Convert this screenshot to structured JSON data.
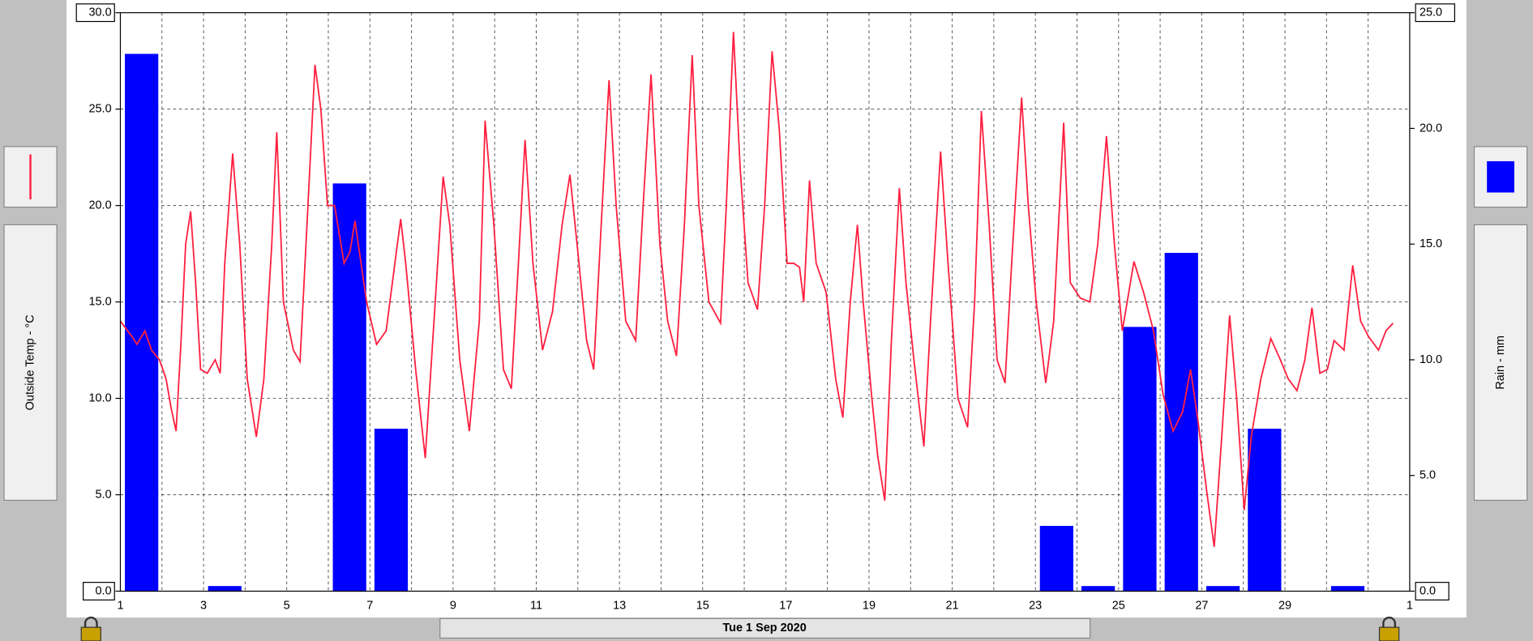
{
  "chart_data": {
    "type": "combo",
    "date": "Tue 1 Sep 2020",
    "grid": true,
    "xlim": [
      1,
      32
    ],
    "xticks": [
      1,
      {
        "value": 2,
        "label": null
      },
      3,
      {
        "value": 4,
        "label": null
      },
      5,
      {
        "value": 6,
        "label": null
      },
      7,
      {
        "value": 8,
        "label": null
      },
      9,
      {
        "value": 10,
        "label": null
      },
      11,
      {
        "value": 12,
        "label": null
      },
      13,
      {
        "value": 14,
        "label": null
      },
      15,
      {
        "value": 16,
        "label": null
      },
      17,
      {
        "value": 18,
        "label": null
      },
      19,
      {
        "value": 20,
        "label": null
      },
      21,
      {
        "value": 22,
        "label": null
      },
      23,
      {
        "value": 24,
        "label": null
      },
      25,
      {
        "value": 26,
        "label": null
      },
      27,
      {
        "value": 28,
        "label": null
      },
      29,
      {
        "value": 30,
        "label": null
      },
      {
        "value": 31,
        "label": null
      },
      {
        "value": 32,
        "label": "1"
      }
    ],
    "ylim": [
      0,
      30
    ],
    "yticks": [
      {
        "value": 0,
        "label": "0.0"
      },
      {
        "value": 5,
        "label": "5.0"
      },
      {
        "value": 10,
        "label": "10.0"
      },
      {
        "value": 15,
        "label": "15.0"
      },
      {
        "value": 20,
        "label": "20.0"
      },
      {
        "value": 25,
        "label": "25.0"
      },
      {
        "value": 30,
        "label": "30.0"
      }
    ],
    "y2lim": [
      0,
      25
    ],
    "y2ticks": [
      {
        "value": 0,
        "label": "0.0"
      },
      {
        "value": 5,
        "label": "5.0"
      },
      {
        "value": 10,
        "label": "10.0"
      },
      {
        "value": 15,
        "label": "15.0"
      },
      {
        "value": 20,
        "label": "20.0"
      },
      {
        "value": 25,
        "label": "25.0"
      }
    ],
    "series": [
      {
        "name": "Outside Temp - °C",
        "type": "line",
        "color": "#ff2040",
        "x": [
          1.0,
          1.28,
          1.4,
          1.59,
          1.75,
          1.94,
          2.1,
          2.22,
          2.34,
          2.46,
          2.57,
          2.69,
          2.81,
          2.93,
          3.09,
          3.28,
          3.4,
          3.51,
          3.7,
          3.87,
          4.05,
          4.27,
          4.45,
          4.64,
          4.76,
          4.92,
          5.16,
          5.32,
          5.51,
          5.68,
          5.82,
          5.98,
          6.15,
          6.38,
          6.52,
          6.64,
          6.92,
          7.16,
          7.39,
          7.63,
          7.74,
          7.86,
          8.1,
          8.33,
          8.57,
          8.76,
          8.92,
          9.16,
          9.39,
          9.63,
          9.77,
          9.98,
          10.21,
          10.4,
          10.57,
          10.73,
          10.92,
          11.15,
          11.39,
          11.62,
          11.81,
          11.98,
          12.21,
          12.38,
          12.56,
          12.75,
          12.92,
          13.15,
          13.39,
          13.57,
          13.76,
          13.97,
          14.16,
          14.37,
          14.56,
          14.75,
          14.91,
          15.15,
          15.43,
          15.57,
          15.74,
          15.9,
          16.09,
          16.32,
          16.49,
          16.67,
          16.84,
          17.03,
          17.19,
          17.33,
          17.43,
          17.57,
          17.73,
          17.97,
          18.2,
          18.37,
          18.55,
          18.72,
          18.86,
          19.07,
          19.21,
          19.38,
          19.54,
          19.73,
          19.89,
          20.08,
          20.32,
          20.48,
          20.72,
          20.9,
          21.14,
          21.37,
          21.54,
          21.7,
          21.89,
          22.08,
          22.27,
          22.43,
          22.67,
          22.83,
          23.02,
          23.25,
          23.44,
          23.68,
          23.84,
          24.08,
          24.31,
          24.5,
          24.71,
          24.9,
          25.09,
          25.37,
          25.6,
          25.84,
          26.07,
          26.31,
          26.54,
          26.73,
          26.9,
          27.13,
          27.3,
          27.48,
          27.67,
          27.84,
          28.02,
          28.19,
          28.42,
          28.66,
          28.89,
          29.08,
          29.29,
          29.48,
          29.65,
          29.84,
          30.02,
          30.18,
          30.42,
          30.63,
          30.82,
          31.01,
          31.25,
          31.43,
          31.6
        ],
        "values": [
          14.0,
          13.2,
          12.8,
          13.5,
          12.5,
          12.0,
          11.0,
          9.5,
          8.3,
          13.0,
          18.0,
          19.7,
          16.0,
          11.5,
          11.3,
          12.0,
          11.3,
          17.0,
          22.7,
          18.0,
          11.0,
          8.0,
          11.0,
          18.0,
          23.8,
          15.0,
          12.5,
          11.9,
          20.0,
          27.3,
          25.0,
          20.0,
          20.0,
          17.0,
          17.6,
          19.2,
          15.0,
          12.8,
          13.5,
          17.5,
          19.3,
          17.0,
          11.5,
          6.9,
          15.0,
          21.5,
          19.0,
          12.0,
          8.3,
          14.0,
          24.4,
          19.0,
          11.5,
          10.5,
          17.0,
          23.4,
          17.0,
          12.5,
          14.5,
          19.0,
          21.6,
          18.0,
          13.0,
          11.5,
          19.0,
          26.5,
          20.0,
          14.0,
          13.0,
          20.0,
          26.8,
          18.0,
          14.0,
          12.2,
          19.0,
          27.8,
          20.0,
          15.0,
          13.9,
          20.0,
          29.0,
          22.0,
          16.0,
          14.6,
          20.0,
          28.0,
          24.0,
          17.0,
          17.0,
          16.8,
          15.0,
          21.3,
          17.0,
          15.5,
          11.0,
          9.0,
          15.0,
          19.0,
          15.0,
          10.0,
          7.0,
          4.7,
          13.0,
          20.9,
          16.0,
          12.0,
          7.5,
          14.0,
          22.8,
          17.0,
          10.0,
          8.5,
          15.0,
          24.9,
          19.0,
          12.0,
          10.8,
          17.0,
          25.6,
          20.0,
          15.0,
          10.8,
          14.0,
          24.3,
          16.0,
          15.2,
          15.0,
          18.0,
          23.6,
          18.0,
          13.5,
          17.1,
          15.5,
          13.5,
          10.2,
          8.3,
          9.3,
          11.5,
          9.0,
          5.0,
          2.3,
          8.0,
          14.3,
          10.0,
          4.2,
          8.0,
          11.0,
          13.1,
          12.0,
          11.0,
          10.4,
          12.0,
          14.7,
          11.3,
          11.5,
          13.0,
          12.5,
          16.9,
          14.0,
          13.2,
          12.5,
          13.5,
          13.9
        ]
      },
      {
        "name": "Rain - mm",
        "type": "bar",
        "axis": "y2",
        "color": "#0000ff",
        "x": [
          1,
          2,
          3,
          4,
          5,
          6,
          7,
          8,
          9,
          10,
          11,
          12,
          13,
          14,
          15,
          16,
          17,
          18,
          19,
          20,
          21,
          22,
          23,
          24,
          25,
          26,
          27,
          28,
          29,
          30,
          31
        ],
        "values": [
          23.2,
          0,
          0.2,
          0,
          0,
          17.6,
          7.0,
          0,
          0,
          0,
          0,
          0,
          0,
          0,
          0,
          0,
          0,
          0,
          0,
          0,
          0,
          0,
          2.8,
          0.2,
          11.4,
          14.6,
          0.2,
          7.0,
          0,
          0.2,
          0
        ]
      }
    ]
  }
}
